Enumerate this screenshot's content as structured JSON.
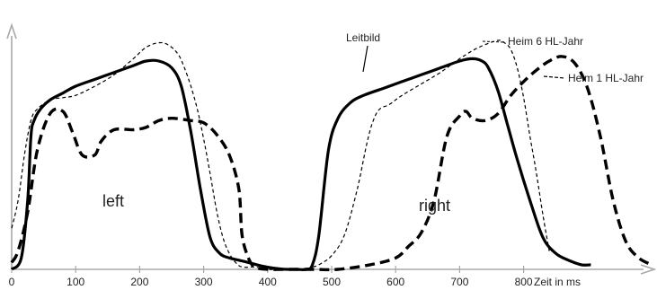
{
  "chart_data": {
    "type": "line",
    "xlabel": "Zeit in ms",
    "x_ticks": [
      0,
      100,
      200,
      300,
      400,
      500,
      600,
      700,
      800
    ],
    "xlim": [
      0,
      1010
    ],
    "ylim": [
      0,
      100
    ],
    "grid": false,
    "annotations": [
      "left",
      "right"
    ],
    "series": [
      {
        "name": "Leitbild",
        "style": "solid",
        "x": [
          0,
          15,
          25,
          30,
          35,
          45,
          60,
          80,
          100,
          130,
          160,
          190,
          210,
          230,
          250,
          265,
          280,
          295,
          310,
          325,
          340,
          355,
          370,
          390,
          410,
          430,
          445,
          460,
          470,
          480,
          495,
          510,
          530,
          550,
          580,
          610,
          640,
          670,
          700,
          720,
          735,
          745,
          760,
          775,
          790,
          810,
          830,
          850,
          870,
          890,
          905
        ],
        "y": [
          0,
          5,
          30,
          58,
          65,
          70,
          74,
          77,
          80,
          83,
          86,
          89,
          91,
          91,
          88,
          80,
          60,
          35,
          14,
          7,
          5,
          4,
          3,
          1.5,
          0.5,
          0,
          0,
          0,
          2,
          15,
          52,
          66,
          73,
          76,
          79,
          82,
          85,
          88,
          91,
          92,
          91,
          88,
          78,
          63,
          48,
          30,
          14,
          7,
          4,
          2,
          2
        ]
      },
      {
        "name": "Heim 6 HL-Jahr",
        "style": "thin-dash",
        "x": [
          0,
          10,
          20,
          30,
          40,
          60,
          80,
          100,
          130,
          160,
          190,
          210,
          230,
          245,
          260,
          270,
          280,
          290,
          300,
          310,
          320,
          330,
          340,
          350,
          360,
          380,
          400,
          420,
          440,
          460,
          470,
          480,
          500,
          520,
          540,
          555,
          565,
          575,
          590,
          610,
          640,
          670,
          700,
          730,
          760,
          770,
          780,
          790,
          800,
          810,
          820,
          830,
          840
        ],
        "y": [
          18,
          30,
          50,
          65,
          70,
          74,
          75,
          76,
          80,
          85,
          92,
          97,
          99,
          98,
          94,
          88,
          80,
          70,
          57,
          42,
          26,
          14,
          7,
          3,
          1,
          1,
          0,
          0,
          0,
          0,
          1,
          2,
          6,
          15,
          35,
          55,
          65,
          70,
          72,
          76,
          81,
          86,
          92,
          97,
          100,
          99,
          96,
          88,
          75,
          58,
          42,
          24,
          8
        ]
      },
      {
        "name": "Heim 1 HL-Jahr",
        "style": "thick-dash",
        "x": [
          0,
          10,
          25,
          40,
          60,
          80,
          95,
          110,
          130,
          140,
          160,
          190,
          210,
          230,
          250,
          280,
          300,
          320,
          340,
          355,
          360,
          370,
          380,
          400,
          430,
          470,
          510,
          560,
          600,
          620,
          640,
          660,
          680,
          700,
          710,
          720,
          740,
          760,
          780,
          800,
          820,
          840,
          860,
          880,
          900,
          920,
          940,
          960,
          980,
          1000
        ],
        "y": [
          3,
          8,
          25,
          52,
          68,
          69,
          60,
          50,
          50,
          56,
          61,
          61,
          62,
          65,
          66,
          65,
          64,
          59,
          50,
          35,
          15,
          5,
          1,
          0,
          0,
          0,
          0,
          2,
          5,
          10,
          16,
          30,
          58,
          67,
          69,
          66,
          65,
          68,
          76,
          82,
          87,
          91,
          93,
          90,
          79,
          58,
          30,
          12,
          5,
          2
        ]
      }
    ]
  }
}
